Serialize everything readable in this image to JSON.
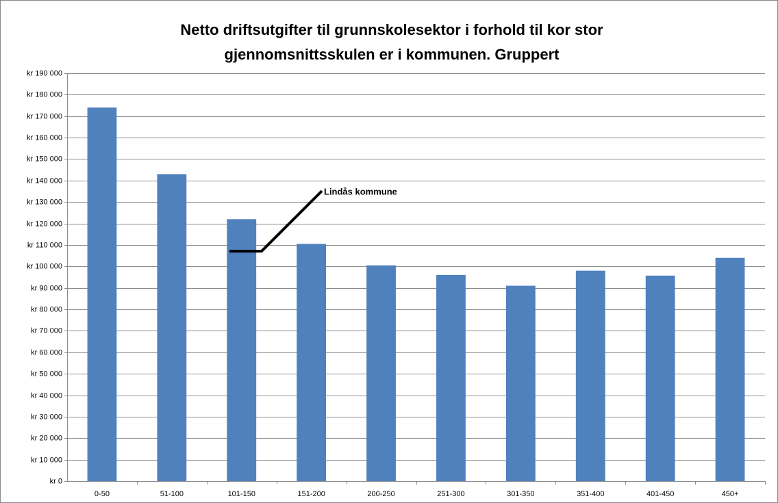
{
  "chart_data": {
    "type": "bar",
    "title": "Netto driftsutgifter til grunnskolesektor i forhold til kor stor gjennomsnittsskulen er i kommunen. Gruppert",
    "categories": [
      "0-50",
      "51-100",
      "101-150",
      "151-200",
      "200-250",
      "251-300",
      "301-350",
      "351-400",
      "401-450",
      "450+"
    ],
    "values": [
      174000,
      143000,
      122000,
      110500,
      100500,
      96000,
      91000,
      98000,
      95700,
      104000
    ],
    "color": "#4f81bd",
    "ylim": [
      0,
      190000
    ],
    "yticks": [
      {
        "value": 0,
        "label": "kr 0"
      },
      {
        "value": 10000,
        "label": "kr 10 000"
      },
      {
        "value": 20000,
        "label": "kr 20 000"
      },
      {
        "value": 30000,
        "label": "kr 30 000"
      },
      {
        "value": 40000,
        "label": "kr 40 000"
      },
      {
        "value": 50000,
        "label": "kr 50 000"
      },
      {
        "value": 60000,
        "label": "kr 60 000"
      },
      {
        "value": 70000,
        "label": "kr 70 000"
      },
      {
        "value": 80000,
        "label": "kr 80 000"
      },
      {
        "value": 90000,
        "label": "kr 90 000"
      },
      {
        "value": 100000,
        "label": "kr 100 000"
      },
      {
        "value": 110000,
        "label": "kr 110 000"
      },
      {
        "value": 120000,
        "label": "kr 120 000"
      },
      {
        "value": 130000,
        "label": "kr 130 000"
      },
      {
        "value": 140000,
        "label": "kr 140 000"
      },
      {
        "value": 150000,
        "label": "kr 150 000"
      },
      {
        "value": 160000,
        "label": "kr 160 000"
      },
      {
        "value": 170000,
        "label": "kr 170 000"
      },
      {
        "value": 180000,
        "label": "kr 180 000"
      },
      {
        "value": 190000,
        "label": "kr 190 000"
      }
    ],
    "grid": true,
    "annotation": "Lindås kommune"
  }
}
